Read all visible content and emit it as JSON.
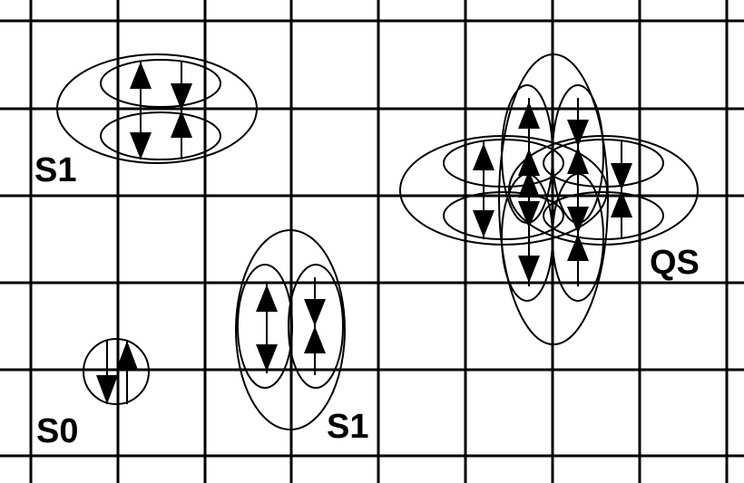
{
  "labels": {
    "s1_top": "S1",
    "s1_mid": "S1",
    "s0": "S0",
    "qs": "QS"
  },
  "colors": {
    "ink": "#000000",
    "background": "#ffffff"
  }
}
